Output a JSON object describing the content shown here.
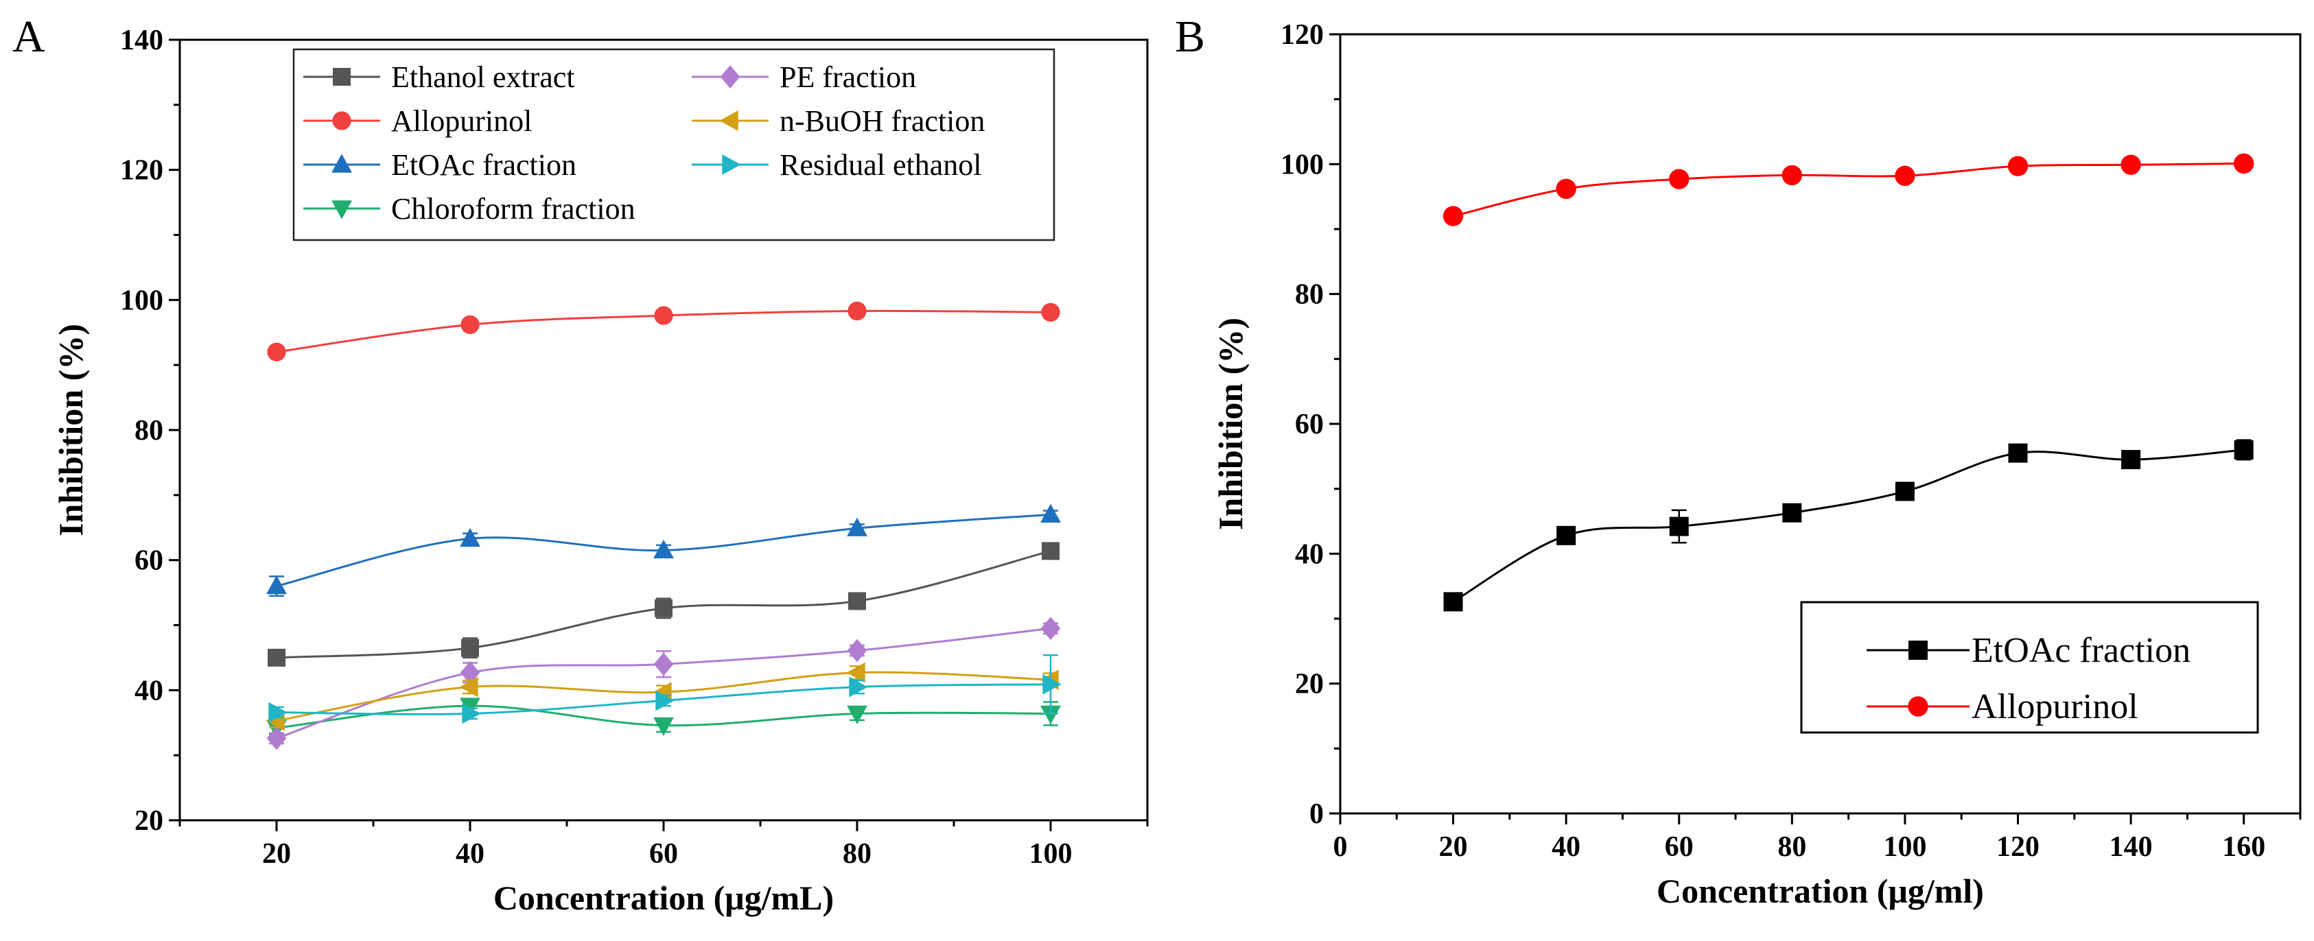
{
  "chart_data": [
    {
      "panel": "A",
      "type": "line",
      "xlabel": "Concentration (μg/mL)",
      "ylabel": "Inhibition (%)",
      "xlim": [
        10,
        110
      ],
      "ylim": [
        20,
        140
      ],
      "x_ticks": [
        20,
        40,
        60,
        80,
        100
      ],
      "y_ticks": [
        20,
        40,
        60,
        80,
        100,
        120,
        140
      ],
      "legend_position": "top-center",
      "x": [
        20,
        40,
        60,
        80,
        100
      ],
      "series": [
        {
          "name": "Ethanol extract",
          "color": "#555555",
          "marker": "square",
          "values": [
            45.0,
            46.5,
            52.6,
            53.7,
            61.4
          ],
          "errors": [
            1.0,
            1.5,
            1.5,
            0.8,
            1.0
          ]
        },
        {
          "name": "Allopurinol",
          "color": "#f04040",
          "marker": "circle",
          "values": [
            92.0,
            96.2,
            97.6,
            98.3,
            98.1
          ],
          "errors": [
            0.5,
            0.5,
            0.5,
            0.5,
            0.5
          ]
        },
        {
          "name": "EtOAc fraction",
          "color": "#1f6fbf",
          "marker": "triangle-up",
          "values": [
            56.0,
            63.3,
            61.5,
            64.9,
            67.0
          ],
          "errors": [
            1.5,
            0.8,
            0.8,
            0.6,
            0.6
          ]
        },
        {
          "name": "Chloroform fraction",
          "color": "#1fae6e",
          "marker": "triangle-down",
          "values": [
            34.2,
            37.6,
            34.6,
            36.4,
            36.4
          ],
          "errors": [
            1.0,
            1.0,
            1.0,
            1.0,
            1.8
          ]
        },
        {
          "name": "PE fraction",
          "color": "#b07cd0",
          "marker": "diamond",
          "values": [
            32.6,
            42.7,
            44.0,
            46.1,
            49.5
          ],
          "errors": [
            0.8,
            1.5,
            2.0,
            0.8,
            0.8
          ]
        },
        {
          "name": "n-BuOH fraction",
          "color": "#d4a017",
          "marker": "triangle-left",
          "values": [
            35.3,
            40.5,
            39.7,
            42.7,
            41.6
          ],
          "errors": [
            1.0,
            1.0,
            1.0,
            1.0,
            1.0
          ]
        },
        {
          "name": "Residual ethanol",
          "color": "#1fb5c5",
          "marker": "triangle-right",
          "values": [
            36.6,
            36.4,
            38.4,
            40.5,
            40.9
          ],
          "errors": [
            0.8,
            0.8,
            0.8,
            1.0,
            4.5
          ]
        }
      ]
    },
    {
      "panel": "B",
      "type": "line",
      "xlabel": "Concentration (μg/ml)",
      "ylabel": "Inhibition (%)",
      "xlim": [
        0,
        170
      ],
      "ylim": [
        0,
        120
      ],
      "x_ticks": [
        0,
        20,
        40,
        60,
        80,
        100,
        120,
        140,
        160
      ],
      "y_ticks": [
        0,
        20,
        40,
        60,
        80,
        100,
        120
      ],
      "legend_position": "bottom-right",
      "x": [
        20,
        40,
        60,
        80,
        100,
        120,
        140,
        160
      ],
      "series": [
        {
          "name": "EtOAc fraction",
          "color": "#000000",
          "marker": "square",
          "values": [
            32.6,
            42.8,
            44.2,
            46.3,
            49.6,
            55.5,
            54.5,
            56.0
          ],
          "errors": [
            0.6,
            0.6,
            2.5,
            0.6,
            0.6,
            0.6,
            0.6,
            1.5
          ]
        },
        {
          "name": "Allopurinol",
          "color": "#ff0000",
          "marker": "circle",
          "values": [
            92.0,
            96.2,
            97.7,
            98.3,
            98.2,
            99.7,
            99.9,
            100.1
          ],
          "errors": [
            0,
            0,
            0,
            0,
            0,
            0,
            0,
            0
          ]
        }
      ]
    }
  ]
}
